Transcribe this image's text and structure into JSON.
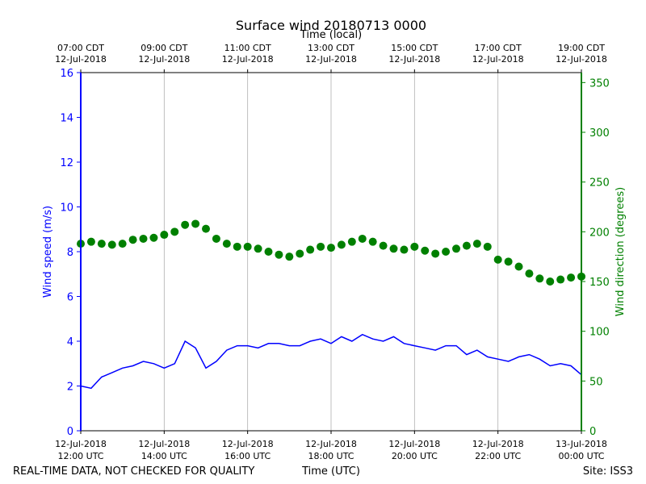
{
  "chart_data": {
    "type": "line+scatter",
    "title": "Surface wind 20180713 0000",
    "top_axis_label": "Time (local)",
    "xlabel": "Time (UTC)",
    "ylabel_left": "Wind speed (m/s)",
    "ylabel_right": "Wind direction (degrees)",
    "footer_left": "REAL-TIME DATA, NOT CHECKED FOR QUALITY",
    "footer_right": "Site: ISS3",
    "grid": "vertical at each 2-hour tick",
    "x_range_utc_hours": [
      12,
      24
    ],
    "left_ylim": [
      0,
      16
    ],
    "left_yticks": [
      "0",
      "2",
      "4",
      "6",
      "8",
      "10",
      "12",
      "14",
      "16"
    ],
    "right_ylim": [
      0,
      360
    ],
    "right_yticks": [
      "0",
      "50",
      "100",
      "150",
      "200",
      "250",
      "300",
      "350"
    ],
    "bottom_ticks": [
      {
        "date": "12-Jul-2018",
        "time": "12:00 UTC"
      },
      {
        "date": "12-Jul-2018",
        "time": "14:00 UTC"
      },
      {
        "date": "12-Jul-2018",
        "time": "16:00 UTC"
      },
      {
        "date": "12-Jul-2018",
        "time": "18:00 UTC"
      },
      {
        "date": "12-Jul-2018",
        "time": "20:00 UTC"
      },
      {
        "date": "12-Jul-2018",
        "time": "22:00 UTC"
      },
      {
        "date": "13-Jul-2018",
        "time": "00:00 UTC"
      }
    ],
    "top_ticks": [
      {
        "time": "07:00 CDT",
        "date": "12-Jul-2018"
      },
      {
        "time": "09:00 CDT",
        "date": "12-Jul-2018"
      },
      {
        "time": "11:00 CDT",
        "date": "12-Jul-2018"
      },
      {
        "time": "13:00 CDT",
        "date": "12-Jul-2018"
      },
      {
        "time": "15:00 CDT",
        "date": "12-Jul-2018"
      },
      {
        "time": "17:00 CDT",
        "date": "12-Jul-2018"
      },
      {
        "time": "19:00 CDT",
        "date": "12-Jul-2018"
      }
    ],
    "series": [
      {
        "name": "Wind speed",
        "axis": "left",
        "kind": "line",
        "color": "#0000ff",
        "x_hours_utc": [
          12.0,
          12.25,
          12.5,
          12.75,
          13.0,
          13.25,
          13.5,
          13.75,
          14.0,
          14.25,
          14.5,
          14.75,
          15.0,
          15.25,
          15.5,
          15.75,
          16.0,
          16.25,
          16.5,
          16.75,
          17.0,
          17.25,
          17.5,
          17.75,
          18.0,
          18.25,
          18.5,
          18.75,
          19.0,
          19.25,
          19.5,
          19.75,
          20.0,
          20.25,
          20.5,
          20.75,
          21.0,
          21.25,
          21.5,
          21.75,
          22.0,
          22.25,
          22.5,
          22.75,
          23.0,
          23.25,
          23.5,
          23.75,
          24.0
        ],
        "values": [
          2.0,
          1.9,
          2.4,
          2.6,
          2.8,
          2.9,
          3.1,
          3.0,
          2.8,
          3.0,
          4.0,
          3.7,
          2.8,
          3.1,
          3.6,
          3.8,
          3.8,
          3.7,
          3.9,
          3.9,
          3.8,
          3.8,
          4.0,
          4.1,
          3.9,
          4.2,
          4.0,
          4.3,
          4.1,
          4.0,
          4.2,
          3.9,
          3.8,
          3.7,
          3.6,
          3.8,
          3.8,
          3.4,
          3.6,
          3.3,
          3.2,
          3.1,
          3.3,
          3.4,
          3.2,
          2.9,
          3.0,
          2.9,
          2.5
        ]
      },
      {
        "name": "Wind direction",
        "axis": "right",
        "kind": "scatter",
        "color": "#008000",
        "x_hours_utc": [
          12.0,
          12.25,
          12.5,
          12.75,
          13.0,
          13.25,
          13.5,
          13.75,
          14.0,
          14.25,
          14.5,
          14.75,
          15.0,
          15.25,
          15.5,
          15.75,
          16.0,
          16.25,
          16.5,
          16.75,
          17.0,
          17.25,
          17.5,
          17.75,
          18.0,
          18.25,
          18.5,
          18.75,
          19.0,
          19.25,
          19.5,
          19.75,
          20.0,
          20.25,
          20.5,
          20.75,
          21.0,
          21.25,
          21.5,
          21.75,
          22.0,
          22.25,
          22.5,
          22.75,
          23.0,
          23.25,
          23.5,
          23.75,
          24.0
        ],
        "values": [
          188,
          190,
          188,
          187,
          188,
          192,
          193,
          194,
          197,
          200,
          207,
          208,
          203,
          193,
          188,
          185,
          185,
          183,
          180,
          177,
          175,
          178,
          182,
          185,
          184,
          187,
          190,
          193,
          190,
          186,
          183,
          182,
          185,
          181,
          178,
          180,
          183,
          186,
          188,
          185,
          172,
          170,
          165,
          158,
          153,
          150,
          152,
          154,
          155
        ]
      }
    ]
  }
}
